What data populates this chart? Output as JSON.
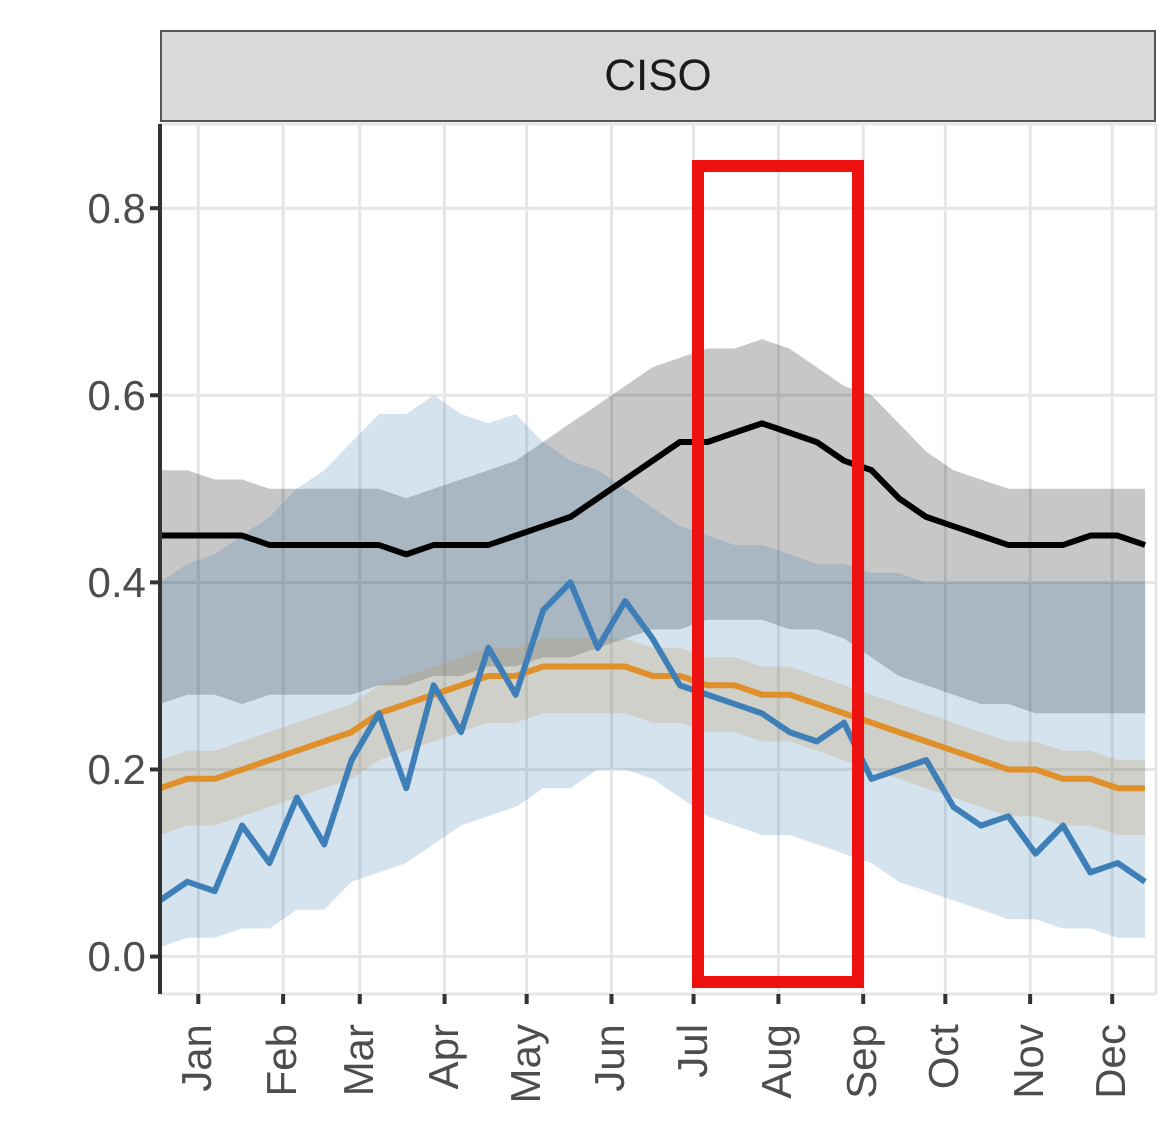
{
  "chart_data": {
    "type": "line",
    "title": "CISO",
    "x": [
      "--01-01",
      "--01-11",
      "--01-21",
      "--01-31",
      "--02-10",
      "--02-20",
      "--03-02",
      "--03-12",
      "--03-22",
      "--04-01",
      "--04-11",
      "--04-21",
      "--05-01",
      "--05-11",
      "--05-21",
      "--05-31",
      "--06-10",
      "--06-20",
      "--06-30",
      "--07-10",
      "--07-20",
      "--07-30",
      "--08-09",
      "--08-19",
      "--08-29",
      "--09-08",
      "--09-18",
      "--09-28",
      "--10-08",
      "--10-18",
      "--10-28",
      "--11-07",
      "--11-17",
      "--11-27",
      "--12-07",
      "--12-17",
      "--12-27"
    ],
    "series": [
      {
        "color": "#000000",
        "values": [
          0.45,
          0.45,
          0.45,
          0.45,
          0.44,
          0.44,
          0.44,
          0.44,
          0.44,
          0.43,
          0.44,
          0.44,
          0.44,
          0.45,
          0.46,
          0.47,
          0.49,
          0.51,
          0.53,
          0.55,
          0.55,
          0.56,
          0.57,
          0.56,
          0.55,
          0.53,
          0.52,
          0.49,
          0.47,
          0.46,
          0.45,
          0.44,
          0.44,
          0.44,
          0.45,
          0.45,
          0.44
        ],
        "lower": [
          0.27,
          0.28,
          0.28,
          0.27,
          0.28,
          0.28,
          0.28,
          0.28,
          0.29,
          0.29,
          0.3,
          0.3,
          0.31,
          0.31,
          0.32,
          0.32,
          0.33,
          0.34,
          0.35,
          0.35,
          0.36,
          0.36,
          0.36,
          0.35,
          0.35,
          0.34,
          0.32,
          0.3,
          0.29,
          0.28,
          0.27,
          0.27,
          0.26,
          0.26,
          0.26,
          0.26,
          0.26
        ],
        "upper": [
          0.52,
          0.52,
          0.51,
          0.51,
          0.5,
          0.5,
          0.5,
          0.5,
          0.5,
          0.49,
          0.5,
          0.51,
          0.52,
          0.53,
          0.55,
          0.57,
          0.59,
          0.61,
          0.63,
          0.64,
          0.65,
          0.65,
          0.66,
          0.65,
          0.63,
          0.61,
          0.6,
          0.57,
          0.54,
          0.52,
          0.51,
          0.5,
          0.5,
          0.5,
          0.5,
          0.5,
          0.5
        ]
      },
      {
        "color": "#e0902a",
        "values": [
          0.18,
          0.19,
          0.19,
          0.2,
          0.21,
          0.22,
          0.23,
          0.24,
          0.26,
          0.27,
          0.28,
          0.29,
          0.3,
          0.3,
          0.31,
          0.31,
          0.31,
          0.31,
          0.3,
          0.3,
          0.29,
          0.29,
          0.28,
          0.28,
          0.27,
          0.26,
          0.25,
          0.24,
          0.23,
          0.22,
          0.21,
          0.2,
          0.2,
          0.19,
          0.19,
          0.18,
          0.18
        ],
        "lower": [
          0.13,
          0.14,
          0.14,
          0.15,
          0.16,
          0.17,
          0.18,
          0.19,
          0.21,
          0.22,
          0.23,
          0.24,
          0.25,
          0.25,
          0.26,
          0.26,
          0.26,
          0.26,
          0.25,
          0.25,
          0.24,
          0.24,
          0.23,
          0.23,
          0.22,
          0.21,
          0.2,
          0.19,
          0.18,
          0.17,
          0.16,
          0.15,
          0.15,
          0.14,
          0.14,
          0.13,
          0.13
        ],
        "upper": [
          0.21,
          0.22,
          0.22,
          0.23,
          0.24,
          0.25,
          0.26,
          0.27,
          0.29,
          0.3,
          0.31,
          0.32,
          0.33,
          0.33,
          0.34,
          0.34,
          0.34,
          0.34,
          0.33,
          0.33,
          0.32,
          0.32,
          0.31,
          0.31,
          0.3,
          0.29,
          0.28,
          0.27,
          0.26,
          0.25,
          0.24,
          0.23,
          0.23,
          0.22,
          0.22,
          0.21,
          0.21
        ]
      },
      {
        "color": "#3f7fb8",
        "values": [
          0.06,
          0.08,
          0.07,
          0.14,
          0.1,
          0.17,
          0.12,
          0.21,
          0.26,
          0.18,
          0.29,
          0.24,
          0.33,
          0.28,
          0.37,
          0.4,
          0.33,
          0.38,
          0.34,
          0.29,
          0.28,
          0.27,
          0.26,
          0.24,
          0.23,
          0.25,
          0.19,
          0.2,
          0.21,
          0.16,
          0.14,
          0.15,
          0.11,
          0.14,
          0.09,
          0.1,
          0.08
        ],
        "lower": [
          0.01,
          0.02,
          0.02,
          0.03,
          0.03,
          0.05,
          0.05,
          0.08,
          0.09,
          0.1,
          0.12,
          0.14,
          0.15,
          0.16,
          0.18,
          0.18,
          0.2,
          0.2,
          0.19,
          0.17,
          0.15,
          0.14,
          0.13,
          0.13,
          0.12,
          0.11,
          0.1,
          0.08,
          0.07,
          0.06,
          0.05,
          0.04,
          0.04,
          0.03,
          0.03,
          0.02,
          0.02
        ],
        "upper": [
          0.4,
          0.42,
          0.43,
          0.45,
          0.47,
          0.5,
          0.52,
          0.55,
          0.58,
          0.58,
          0.6,
          0.58,
          0.57,
          0.58,
          0.55,
          0.53,
          0.52,
          0.5,
          0.48,
          0.46,
          0.45,
          0.44,
          0.44,
          0.43,
          0.42,
          0.42,
          0.41,
          0.41,
          0.4,
          0.4,
          0.4,
          0.4,
          0.4,
          0.4,
          0.4,
          0.4,
          0.4
        ]
      }
    ],
    "xlim": [
      "--01-01",
      "--12-31"
    ],
    "xticks": [
      {
        "value": "--01-15",
        "label": "Jan"
      },
      {
        "value": "--02-15",
        "label": "Feb"
      },
      {
        "value": "--03-15",
        "label": "Mar"
      },
      {
        "value": "--04-15",
        "label": "Apr"
      },
      {
        "value": "--05-15",
        "label": "May"
      },
      {
        "value": "--06-15",
        "label": "Jun"
      },
      {
        "value": "--07-15",
        "label": "Jul"
      },
      {
        "value": "--08-15",
        "label": "Aug"
      },
      {
        "value": "--09-15",
        "label": "Sep"
      },
      {
        "value": "--10-15",
        "label": "Oct"
      },
      {
        "value": "--11-15",
        "label": "Nov"
      },
      {
        "value": "--12-15",
        "label": "Dec"
      }
    ],
    "ylim": [
      -0.04,
      0.89
    ],
    "yticks": [
      {
        "value": 0,
        "label": "0.0"
      },
      {
        "value": 0.2,
        "label": "0.2"
      },
      {
        "value": 0.4,
        "label": "0.4"
      },
      {
        "value": 0.6,
        "label": "0.6"
      },
      {
        "value": 0.8,
        "label": "0.8"
      }
    ],
    "grid": true,
    "legend": false,
    "marker": "none",
    "line_style": "solid"
  }
}
